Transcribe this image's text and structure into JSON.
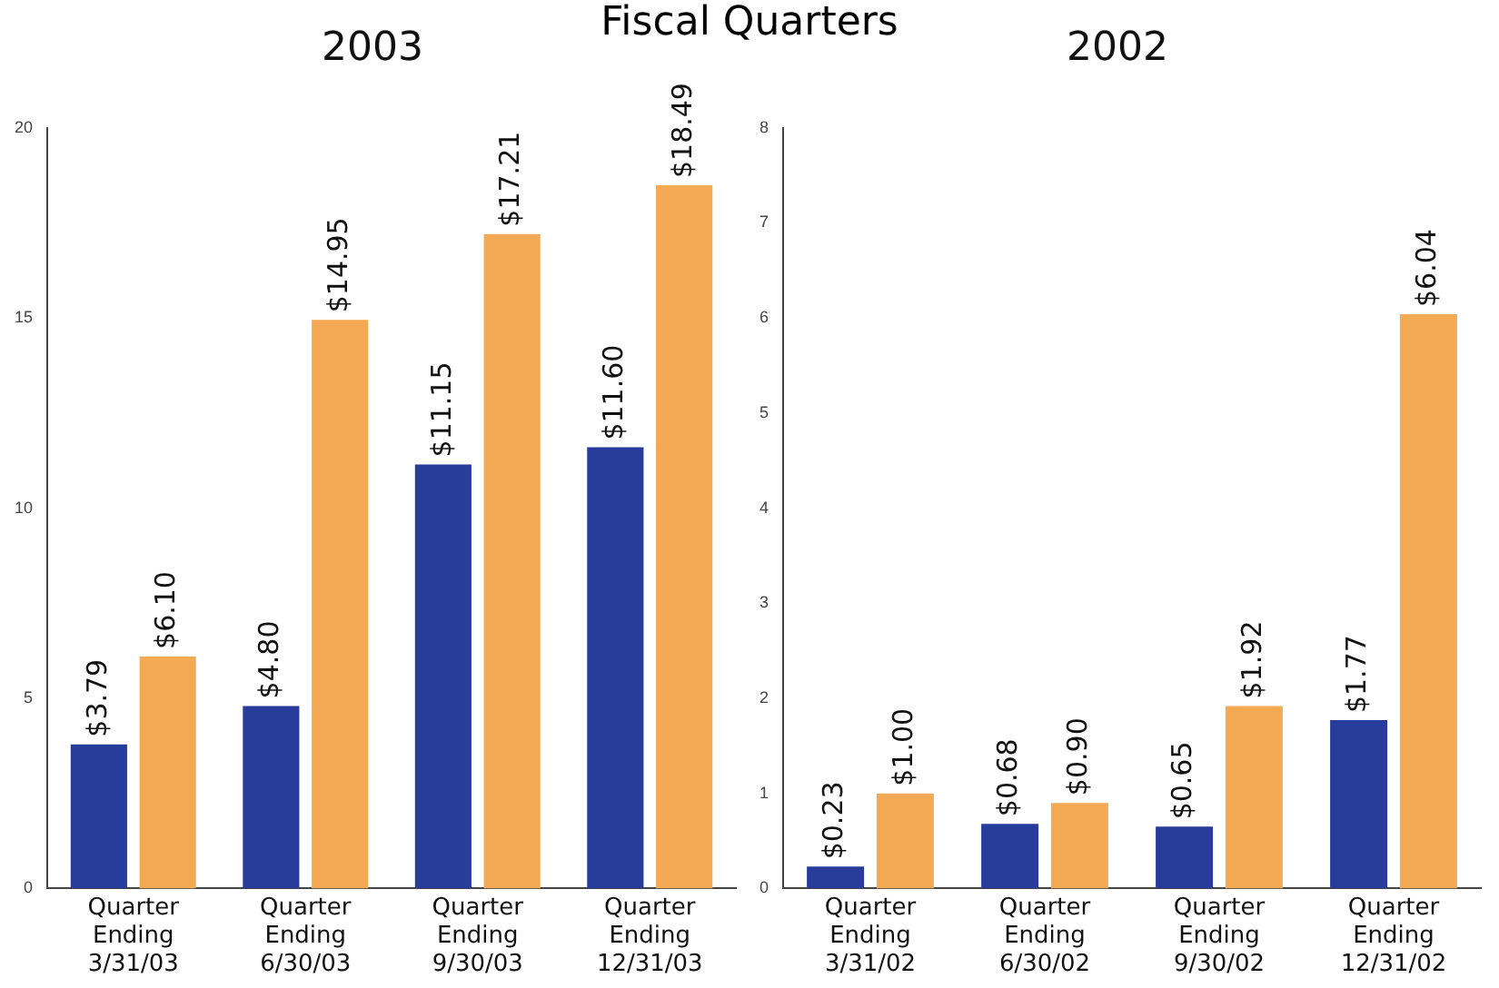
{
  "chart_data": [
    {
      "type": "bar",
      "title": "2003",
      "annotations": [
        "Fiscal Quarters"
      ],
      "categories": [
        "Quarter Ending 3/31/03",
        "Quarter Ending 6/30/03",
        "Quarter Ending 9/30/03",
        "Quarter Ending 12/31/03"
      ],
      "series": [
        {
          "color": "#283c9c",
          "values": [
            3.79,
            4.8,
            11.15,
            11.6
          ],
          "value_labels": [
            "$3.79",
            "$4.80",
            "$11.15",
            "$11.60"
          ]
        },
        {
          "color": "#f4aa55",
          "values": [
            6.1,
            14.95,
            17.21,
            18.49
          ],
          "value_labels": [
            "$6.10",
            "$14.95",
            "$17.21",
            "$18.49"
          ]
        }
      ],
      "ylim": [
        0,
        20
      ],
      "yticks": [
        0,
        5,
        10,
        15,
        20
      ],
      "grid": false,
      "legend": false
    },
    {
      "type": "bar",
      "title": "2002",
      "categories": [
        "Quarter Ending 3/31/02",
        "Quarter Ending 6/30/02",
        "Quarter Ending 9/30/02",
        "Quarter Ending 12/31/02"
      ],
      "series": [
        {
          "color": "#283c9c",
          "values": [
            0.23,
            0.68,
            0.65,
            1.77
          ],
          "value_labels": [
            "$0.23",
            "$0.68",
            "$0.65",
            "$1.77"
          ]
        },
        {
          "color": "#f4aa55",
          "values": [
            1.0,
            0.9,
            1.92,
            6.04
          ],
          "value_labels": [
            "$1.00",
            "$0.90",
            "$1.92",
            "$6.04"
          ]
        }
      ],
      "ylim": [
        0,
        8
      ],
      "yticks": [
        0,
        1,
        2,
        3,
        4,
        5,
        6,
        7,
        8
      ],
      "grid": false,
      "legend": false
    }
  ]
}
